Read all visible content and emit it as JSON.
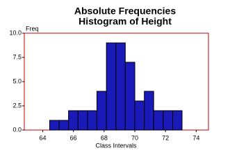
{
  "chart_data": {
    "type": "histogram",
    "title": [
      "Absolute Frequencies",
      "Histogram of Height"
    ],
    "y_label": "Freq",
    "x_label": "Class Intervals",
    "bins": [
      64.45,
      65.07,
      65.68,
      66.3,
      66.92,
      67.53,
      68.15,
      68.77,
      69.38,
      70,
      70.62,
      71.23,
      71.85,
      72.47,
      73.08
    ],
    "values": [
      1,
      1,
      2,
      2,
      2,
      4,
      9,
      9,
      7,
      3,
      4,
      2,
      2,
      2
    ],
    "color": "#1a1ab8",
    "xlim": [
      62.8,
      74.8
    ],
    "xticks": [
      64,
      66,
      68,
      70,
      72,
      74
    ],
    "ylim": [
      0,
      10
    ],
    "yticks": [
      {
        "value": 0,
        "label": "0.0"
      },
      {
        "value": 2.5,
        "label": "2.5"
      },
      {
        "value": 5,
        "label": "5.0"
      },
      {
        "value": 7.5,
        "label": "7.5"
      },
      {
        "value": 10,
        "label": "10.0"
      }
    ]
  }
}
